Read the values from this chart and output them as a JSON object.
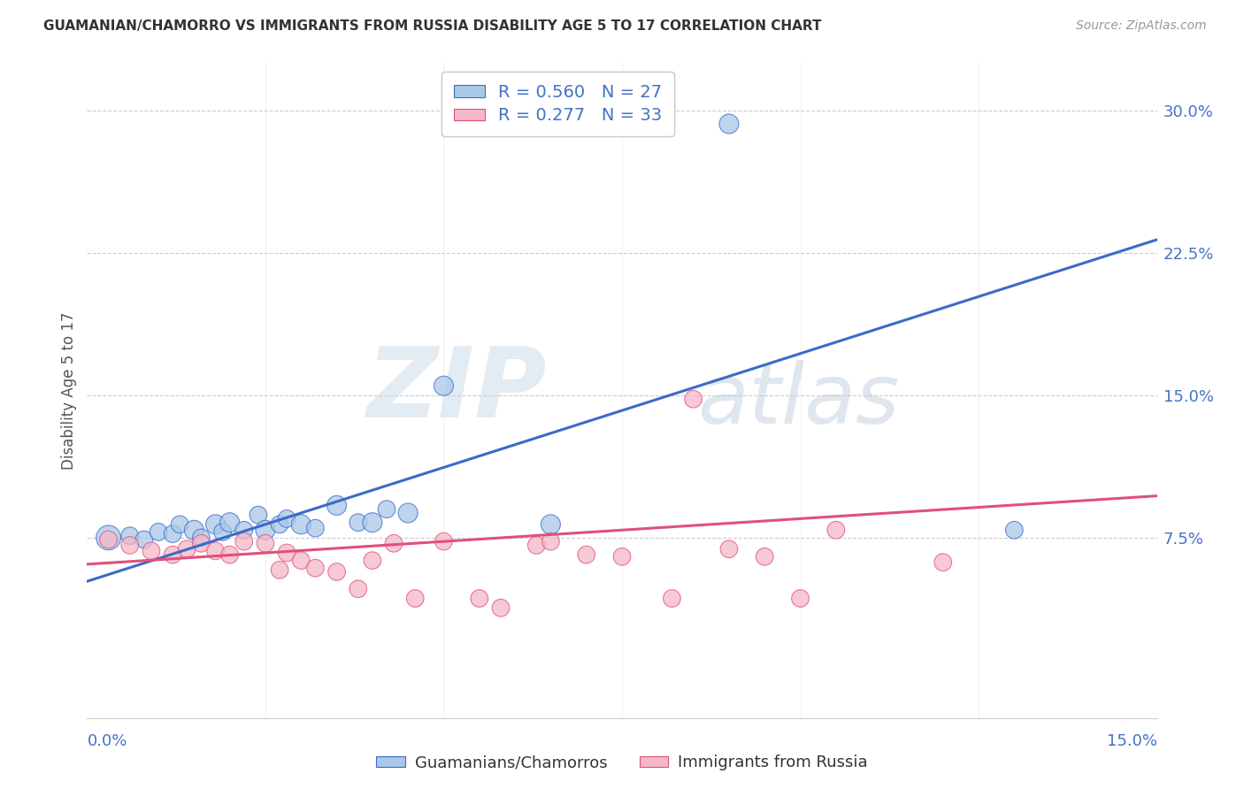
{
  "title": "GUAMANIAN/CHAMORRO VS IMMIGRANTS FROM RUSSIA DISABILITY AGE 5 TO 17 CORRELATION CHART",
  "source": "Source: ZipAtlas.com",
  "ylabel": "Disability Age 5 to 17",
  "yticks": [
    "7.5%",
    "15.0%",
    "22.5%",
    "30.0%"
  ],
  "ytick_vals": [
    0.075,
    0.15,
    0.225,
    0.3
  ],
  "xlim": [
    0.0,
    0.15
  ],
  "ylim": [
    -0.02,
    0.325
  ],
  "legend_label1": "R = 0.560   N = 27",
  "legend_label2": "R = 0.277   N = 33",
  "color_blue": "#a8c8e8",
  "color_pink": "#f4b8c8",
  "line_color_blue": "#3a6bc8",
  "line_color_pink": "#e0507a",
  "blue_scatter_x": [
    0.003,
    0.006,
    0.008,
    0.01,
    0.012,
    0.013,
    0.015,
    0.016,
    0.018,
    0.019,
    0.02,
    0.022,
    0.024,
    0.025,
    0.027,
    0.028,
    0.03,
    0.032,
    0.035,
    0.038,
    0.04,
    0.042,
    0.045,
    0.05,
    0.065,
    0.09,
    0.13
  ],
  "blue_scatter_y": [
    0.075,
    0.076,
    0.074,
    0.078,
    0.077,
    0.082,
    0.079,
    0.075,
    0.082,
    0.078,
    0.083,
    0.079,
    0.087,
    0.079,
    0.082,
    0.085,
    0.082,
    0.08,
    0.092,
    0.083,
    0.083,
    0.09,
    0.088,
    0.155,
    0.082,
    0.293,
    0.079
  ],
  "blue_scatter_size": [
    400,
    200,
    200,
    200,
    200,
    200,
    250,
    200,
    250,
    200,
    250,
    200,
    200,
    250,
    200,
    200,
    250,
    200,
    250,
    200,
    250,
    200,
    250,
    250,
    250,
    250,
    200
  ],
  "pink_scatter_x": [
    0.003,
    0.006,
    0.009,
    0.012,
    0.014,
    0.016,
    0.018,
    0.02,
    0.022,
    0.025,
    0.027,
    0.028,
    0.03,
    0.032,
    0.035,
    0.038,
    0.04,
    0.043,
    0.046,
    0.05,
    0.055,
    0.058,
    0.063,
    0.065,
    0.07,
    0.075,
    0.082,
    0.085,
    0.09,
    0.095,
    0.1,
    0.105,
    0.12
  ],
  "pink_scatter_y": [
    0.074,
    0.071,
    0.068,
    0.066,
    0.069,
    0.072,
    0.068,
    0.066,
    0.073,
    0.072,
    0.058,
    0.067,
    0.063,
    0.059,
    0.057,
    0.048,
    0.063,
    0.072,
    0.043,
    0.073,
    0.043,
    0.038,
    0.071,
    0.073,
    0.066,
    0.065,
    0.043,
    0.148,
    0.069,
    0.065,
    0.043,
    0.079,
    0.062
  ],
  "pink_scatter_size": [
    200,
    200,
    200,
    200,
    200,
    200,
    200,
    200,
    200,
    200,
    200,
    200,
    200,
    200,
    200,
    200,
    200,
    200,
    200,
    200,
    200,
    200,
    200,
    200,
    200,
    200,
    200,
    200,
    200,
    200,
    200,
    200,
    200
  ],
  "blue_line_x": [
    0.0,
    0.15
  ],
  "blue_line_y": [
    0.052,
    0.232
  ],
  "pink_line_x": [
    0.0,
    0.15
  ],
  "pink_line_y": [
    0.061,
    0.097
  ],
  "watermark_zip": "ZIP",
  "watermark_atlas": "atlas",
  "grid_color": "#cccccc",
  "background_color": "#ffffff",
  "title_color": "#333333",
  "source_color": "#999999",
  "ylabel_color": "#555555",
  "tick_color": "#4472c4"
}
